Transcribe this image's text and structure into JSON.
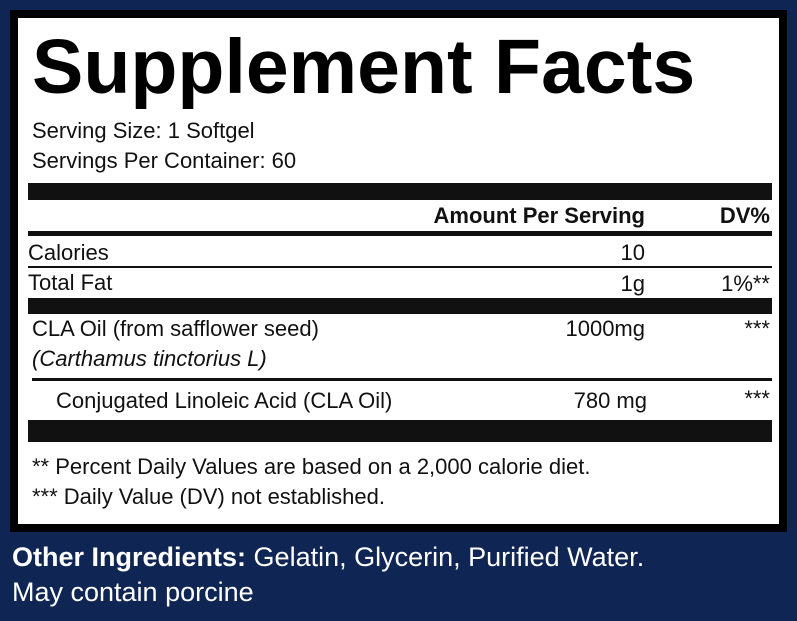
{
  "title": "Supplement Facts",
  "serving_size": "Serving Size: 1 Softgel",
  "servings_per_container": "Servings Per Container: 60",
  "table": {
    "header": {
      "amount": "Amount Per Serving",
      "dv": "DV%"
    },
    "rows": [
      {
        "name": "Calories",
        "amount": "10"
      },
      {
        "name": "Total Fat",
        "amount": "1g",
        "dv": "1%**"
      },
      {
        "name": "CLA Oil (from safflower seed)",
        "sub": "(Carthamus tinctorius L)",
        "amount": "1000mg",
        "dv": "***"
      },
      {
        "name": "Conjugated Linoleic Acid (CLA Oil)",
        "amount": "780 mg",
        "dv": "***"
      }
    ]
  },
  "footnotes": [
    "** Percent Daily Values are based on a 2,000 calorie diet.",
    "*** Daily Value (DV) not established."
  ],
  "other_ingredients": {
    "label": "Other Ingredients:",
    "text": "Gelatin, Glycerin, Purified Water.",
    "note": "May contain porcine"
  }
}
